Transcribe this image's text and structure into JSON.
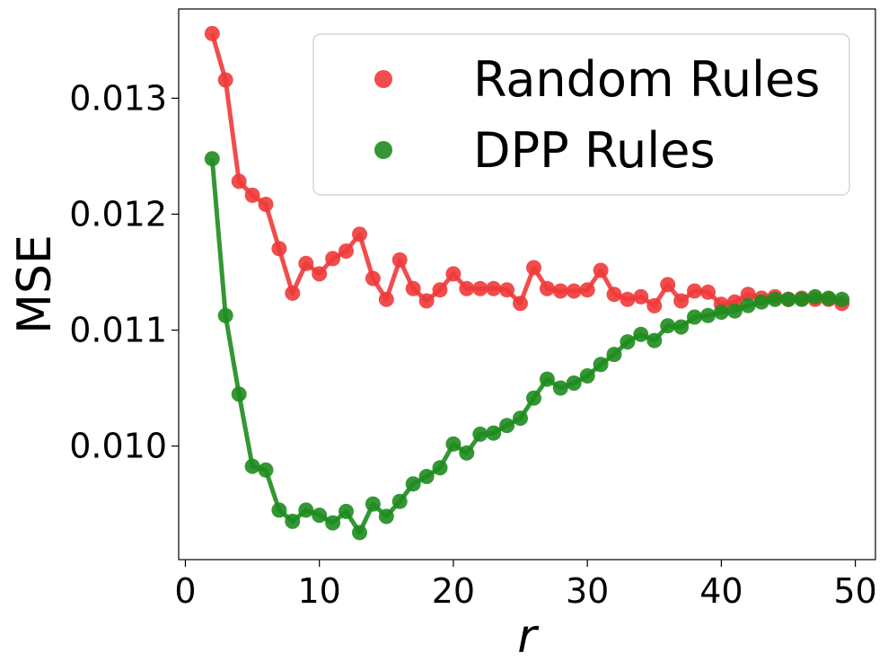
{
  "chart_data": {
    "type": "line",
    "xlabel": "r",
    "ylabel": "MSE",
    "xlim": [
      -0.5,
      51.5
    ],
    "ylim": [
      0.00902,
      0.01377
    ],
    "xticks": [
      0,
      10,
      20,
      30,
      40,
      50
    ],
    "xtick_labels": [
      "0",
      "10",
      "20",
      "30",
      "40",
      "50"
    ],
    "yticks": [
      0.01,
      0.011,
      0.012,
      0.013
    ],
    "ytick_labels": [
      "0.010",
      "0.011",
      "0.012",
      "0.013"
    ],
    "grid": false,
    "legend_position": "top-right",
    "x": [
      2,
      3,
      4,
      5,
      6,
      7,
      8,
      9,
      10,
      11,
      12,
      13,
      14,
      15,
      16,
      17,
      18,
      19,
      20,
      21,
      22,
      23,
      24,
      25,
      26,
      27,
      28,
      29,
      30,
      31,
      32,
      33,
      34,
      35,
      36,
      37,
      38,
      39,
      40,
      41,
      42,
      43,
      44,
      45,
      46,
      47,
      48,
      49
    ],
    "series": [
      {
        "name": "Random Rules",
        "color": "#f03a3a",
        "values": [
          0.013558,
          0.013158,
          0.012283,
          0.012163,
          0.012085,
          0.011703,
          0.011318,
          0.011575,
          0.011485,
          0.011617,
          0.011682,
          0.011827,
          0.011445,
          0.011265,
          0.011605,
          0.011358,
          0.011252,
          0.011347,
          0.011485,
          0.011358,
          0.011358,
          0.011358,
          0.011347,
          0.01123,
          0.011538,
          0.011358,
          0.011337,
          0.011337,
          0.011347,
          0.011515,
          0.011308,
          0.011265,
          0.011287,
          0.01121,
          0.011392,
          0.011252,
          0.011337,
          0.011327,
          0.011222,
          0.011242,
          0.011308,
          0.011275,
          0.011287,
          0.011265,
          0.011275,
          0.011265,
          0.011265,
          0.01123
        ]
      },
      {
        "name": "DPP Rules",
        "color": "#1e8c1e",
        "values": [
          0.012478,
          0.011125,
          0.010447,
          0.009825,
          0.009793,
          0.009447,
          0.00935,
          0.009447,
          0.009403,
          0.009337,
          0.009435,
          0.009253,
          0.0095,
          0.009393,
          0.009522,
          0.009673,
          0.009737,
          0.009812,
          0.010017,
          0.00994,
          0.010102,
          0.010112,
          0.010177,
          0.01024,
          0.010413,
          0.010577,
          0.0105,
          0.010543,
          0.010605,
          0.010703,
          0.01079,
          0.010898,
          0.010963,
          0.01091,
          0.011037,
          0.011027,
          0.011112,
          0.011125,
          0.011155,
          0.011165,
          0.011212,
          0.011242,
          0.011265,
          0.011265,
          0.011265,
          0.011287,
          0.011275,
          0.011265
        ]
      }
    ]
  }
}
